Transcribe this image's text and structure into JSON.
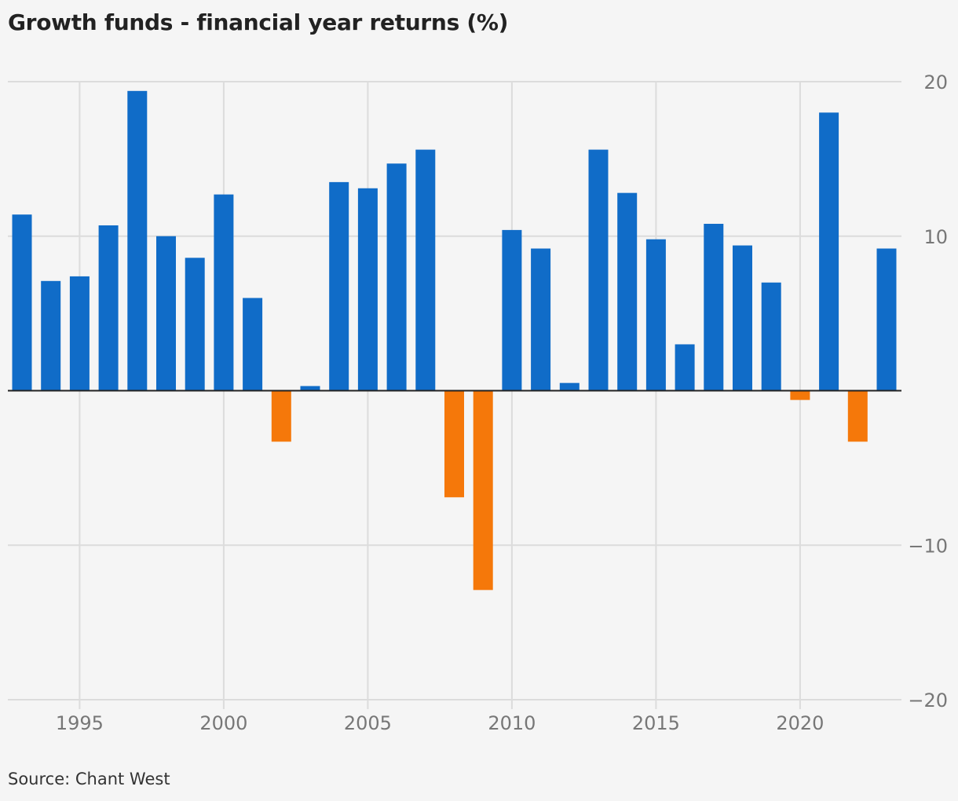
{
  "chart_data": {
    "type": "bar",
    "title": "Growth funds - financial year returns (%)",
    "source": "Source: Chant West",
    "xlabel": "",
    "ylabel": "",
    "x": [
      1993,
      1994,
      1995,
      1996,
      1997,
      1998,
      1999,
      2000,
      2001,
      2002,
      2003,
      2004,
      2005,
      2006,
      2007,
      2008,
      2009,
      2010,
      2011,
      2012,
      2013,
      2014,
      2015,
      2016,
      2017,
      2018,
      2019,
      2020,
      2021,
      2022,
      2023
    ],
    "values": [
      11.4,
      7.1,
      7.4,
      10.7,
      19.4,
      10.0,
      8.6,
      12.7,
      6.0,
      -3.3,
      0.3,
      13.5,
      13.1,
      14.7,
      15.6,
      -6.9,
      -12.9,
      10.4,
      9.2,
      0.5,
      15.6,
      12.8,
      9.8,
      3.0,
      10.8,
      9.4,
      7.0,
      -0.6,
      18.0,
      -3.3,
      9.2
    ],
    "xticks": [
      1995,
      2000,
      2005,
      2010,
      2015,
      2020
    ],
    "yticks": [
      20,
      10,
      0,
      -10,
      -20
    ],
    "ytick_labels": [
      "20",
      "10",
      "",
      "−10",
      "−20"
    ],
    "xtick_labels": [
      "1995",
      "2000",
      "2005",
      "2010",
      "2015",
      "2020"
    ],
    "ylim": [
      -20,
      20
    ],
    "grid": true,
    "y_axis_position": "right",
    "colors": {
      "positive": "#106cc8",
      "negative": "#f5780a",
      "grid": "#dcdcdc",
      "zero_line": "#222222"
    }
  }
}
